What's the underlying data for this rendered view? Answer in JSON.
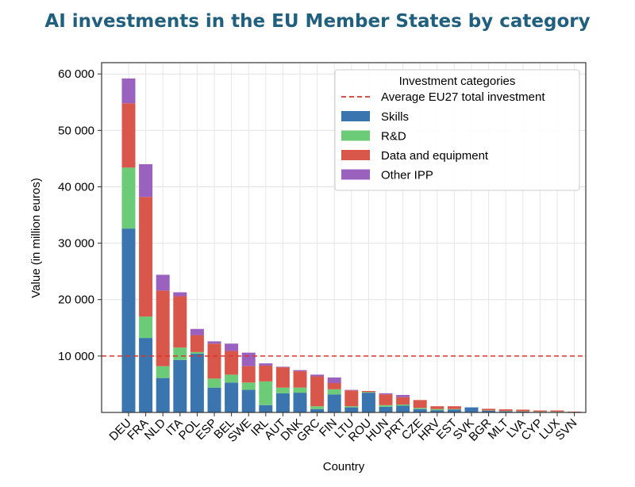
{
  "title": "AI investments in the EU Member States by category",
  "chart_data": {
    "type": "bar",
    "stacked": true,
    "xlabel": "Country",
    "ylabel": "Value (in million euros)",
    "ylim": [
      0,
      62000
    ],
    "yticks": [
      10000,
      20000,
      30000,
      40000,
      50000,
      60000
    ],
    "ytick_labels": [
      "10 000",
      "20 000",
      "30 000",
      "40 000",
      "50 000",
      "60 000"
    ],
    "grid": true,
    "legend": {
      "title": "Investment categories",
      "placement": "top-right",
      "avg_label": "Average EU27 total investment"
    },
    "categories": [
      "DEU",
      "FRA",
      "NLD",
      "ITA",
      "POL",
      "ESP",
      "BEL",
      "SWE",
      "IRL",
      "AUT",
      "DNK",
      "GRC",
      "FIN",
      "LTU",
      "ROU",
      "HUN",
      "PRT",
      "CZE",
      "HRV",
      "EST",
      "SVK",
      "BGR",
      "MLT",
      "LVA",
      "CYP",
      "LUX",
      "SVN"
    ],
    "series": [
      {
        "name": "Skills",
        "color": "#3b75af",
        "values": [
          32600,
          13200,
          6100,
          9300,
          10400,
          4400,
          5300,
          4000,
          1300,
          3400,
          3500,
          600,
          3200,
          900,
          3500,
          1000,
          1200,
          600,
          400,
          500,
          900,
          300,
          200,
          150,
          100,
          100,
          50
        ]
      },
      {
        "name": "R&D",
        "color": "#6bcb77",
        "values": [
          10800,
          3800,
          2100,
          2200,
          300,
          1600,
          1400,
          1300,
          4200,
          1000,
          900,
          500,
          900,
          200,
          100,
          300,
          200,
          200,
          200,
          100,
          0,
          50,
          50,
          50,
          50,
          50,
          0
        ]
      },
      {
        "name": "Data and equipment",
        "color": "#d9574a",
        "values": [
          11400,
          21200,
          13400,
          9100,
          3000,
          6200,
          4200,
          2900,
          2800,
          3600,
          2900,
          5300,
          1100,
          2800,
          200,
          1900,
          1300,
          1400,
          500,
          500,
          0,
          300,
          300,
          300,
          200,
          200,
          100
        ]
      },
      {
        "name": "Other IPP",
        "color": "#9a61bf",
        "values": [
          4400,
          5800,
          2800,
          700,
          1100,
          400,
          1300,
          2400,
          400,
          100,
          200,
          300,
          1000,
          100,
          0,
          200,
          400,
          0,
          0,
          0,
          0,
          0,
          0,
          0,
          0,
          0,
          0
        ]
      }
    ],
    "average_total": 10000,
    "average_color": "#d9362b"
  }
}
